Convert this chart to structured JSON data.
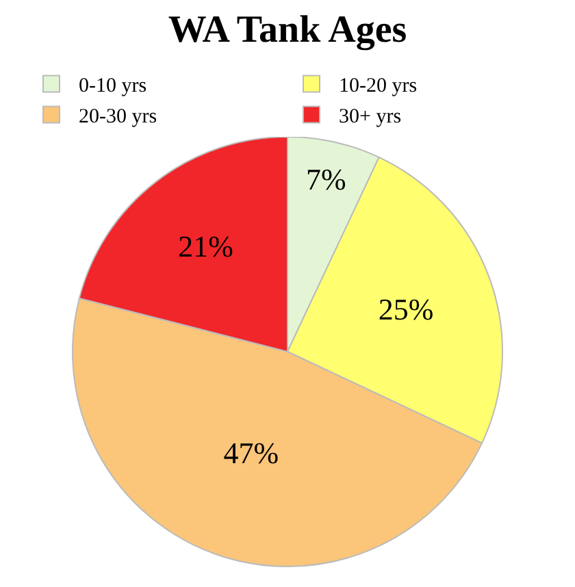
{
  "chart_data": {
    "type": "pie",
    "title": "WA Tank Ages",
    "categories": [
      "0-10 yrs",
      "10-20 yrs",
      "20-30 yrs",
      "30+ yrs"
    ],
    "values": [
      7,
      25,
      47,
      21
    ],
    "value_labels": [
      "7%",
      "25%",
      "47%",
      "21%"
    ],
    "colors": [
      "#e4f5d6",
      "#ffff70",
      "#fbc57a",
      "#f0262a"
    ],
    "legend": "top"
  }
}
